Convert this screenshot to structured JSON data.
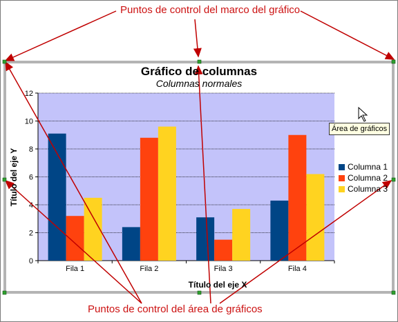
{
  "callouts": {
    "frame_handles": "Puntos de control del marco del gráfico",
    "area_handles": "Puntos de control del área de gráficos"
  },
  "tooltip": "Área de gráficos",
  "chart_data": {
    "type": "bar",
    "title": "Gráfico de columnas",
    "subtitle": "Columnas normales",
    "xlabel": "Título del eje X",
    "ylabel": "Título del eje Y",
    "categories": [
      "Fila 1",
      "Fila 2",
      "Fila 3",
      "Fila 4"
    ],
    "series": [
      {
        "name": "Columna 1",
        "color": "#004586",
        "values": [
          9.1,
          2.4,
          3.1,
          4.3
        ]
      },
      {
        "name": "Columna 2",
        "color": "#ff420e",
        "values": [
          3.2,
          8.8,
          1.5,
          9.0
        ]
      },
      {
        "name": "Columna 3",
        "color": "#ffd320",
        "values": [
          4.5,
          9.6,
          3.7,
          6.2
        ]
      }
    ],
    "ylim": [
      0,
      12
    ],
    "yticks": [
      "0",
      "2",
      "4",
      "6",
      "8",
      "10",
      "12"
    ],
    "grid": true,
    "legend": "right",
    "plot_background": "#c3c3fa"
  }
}
